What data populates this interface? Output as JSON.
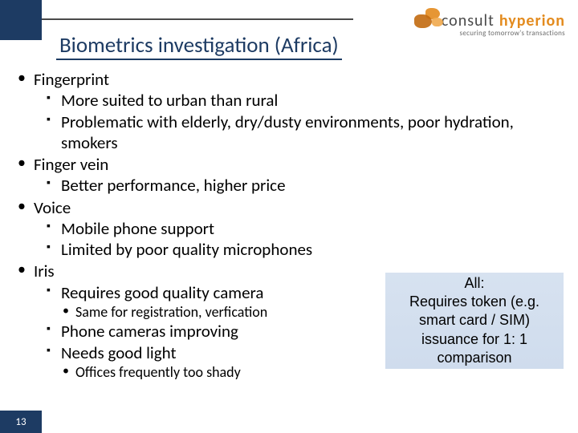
{
  "colors": {
    "navy": "#1d3b63",
    "orange": "#e38b1e",
    "callout_bg_top": "#d7e2f0",
    "callout_bg_bottom": "#cfdced",
    "text": "#000000",
    "white": "#ffffff"
  },
  "typography": {
    "title_fontsize": 27,
    "body_fontsize": 21,
    "level3_fontsize": 18,
    "callout_fontsize": 18,
    "pagenum_fontsize": 13
  },
  "header": {
    "title": "Biometrics investigation (Africa)",
    "logo": {
      "word_light": "consult",
      "word_bold": "hyperion",
      "tagline": "securing tomorrow's transactions"
    }
  },
  "content": {
    "items": [
      {
        "label": "Fingerprint",
        "sub": [
          {
            "label": "More suited to urban than rural"
          },
          {
            "label": "Problematic with elderly, dry/dusty environments, poor hydration, smokers"
          }
        ]
      },
      {
        "label": "Finger vein",
        "sub": [
          {
            "label": "Better performance, higher price"
          }
        ]
      },
      {
        "label": "Voice",
        "sub": [
          {
            "label": "Mobile phone support"
          },
          {
            "label": "Limited by poor quality microphones"
          }
        ]
      },
      {
        "label": "Iris",
        "sub": [
          {
            "label": "Requires good quality camera",
            "sub": [
              {
                "label": "Same for registration, verfication"
              }
            ]
          },
          {
            "label": "Phone cameras improving"
          },
          {
            "label": "Needs good light",
            "sub": [
              {
                "label": "Offices frequently too shady"
              }
            ]
          }
        ]
      }
    ]
  },
  "callout": {
    "text": "All:\nRequires token (e.g. smart card / SIM) issuance for 1: 1 comparison"
  },
  "footer": {
    "page_number": "13",
    "date": ""
  }
}
